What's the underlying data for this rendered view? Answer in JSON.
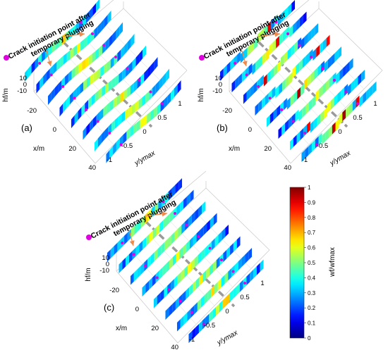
{
  "chart_data": {
    "type": "3d-surface-panels",
    "colormap": "jet",
    "annotation_marker_color": "#e000e0",
    "arrow_color": "#f08a4b",
    "panels": [
      {
        "id": "a",
        "panel_label": "(a)",
        "annotation": [
          "Crack initiation point after",
          "temporary plugging"
        ],
        "zlabel": "hf/m",
        "xlabel": "x/m",
        "ylabel": "y/ymax",
        "z_ticks": [
          "10",
          "0",
          "-10"
        ],
        "x_ticks": [
          "-20",
          "0",
          "20",
          "40"
        ],
        "y_ticks": [
          "-1",
          "-0.5",
          "0",
          "0.5",
          "1"
        ],
        "n_fractures": 8,
        "fracture_style": "curved"
      },
      {
        "id": "b",
        "panel_label": "(b)",
        "annotation": [
          "Crack initiation point after",
          "temporary plugging"
        ],
        "zlabel": "hf/m",
        "xlabel": "x/m",
        "ylabel": "y/ymax",
        "z_ticks": [
          "10",
          "0",
          "-10"
        ],
        "x_ticks": [
          "-20",
          "0",
          "20",
          "40"
        ],
        "y_ticks": [
          "-1",
          "-0.5",
          "0",
          "0.5",
          "1"
        ],
        "n_fractures": 8,
        "fracture_style": "stepped"
      },
      {
        "id": "c",
        "panel_label": "(c)",
        "annotation": [
          "Crack initiation point after",
          "temporary plugging"
        ],
        "zlabel": "hf/m",
        "xlabel": "x/m",
        "ylabel": "y/ymax",
        "z_ticks": [
          "10",
          "0",
          "-10"
        ],
        "x_ticks": [
          "-20",
          "0",
          "20",
          "40"
        ],
        "y_ticks": [
          "-1",
          "-0.5",
          "0",
          "0.5",
          "1"
        ],
        "n_fractures": 8,
        "fracture_style": "straight"
      }
    ],
    "colorbar": {
      "label": "wf/wfmax",
      "range": [
        0,
        1
      ],
      "ticks": [
        "0",
        "0.1",
        "0.2",
        "0.3",
        "0.4",
        "0.5",
        "0.6",
        "0.7",
        "0.8",
        "0.9",
        "1"
      ]
    }
  }
}
